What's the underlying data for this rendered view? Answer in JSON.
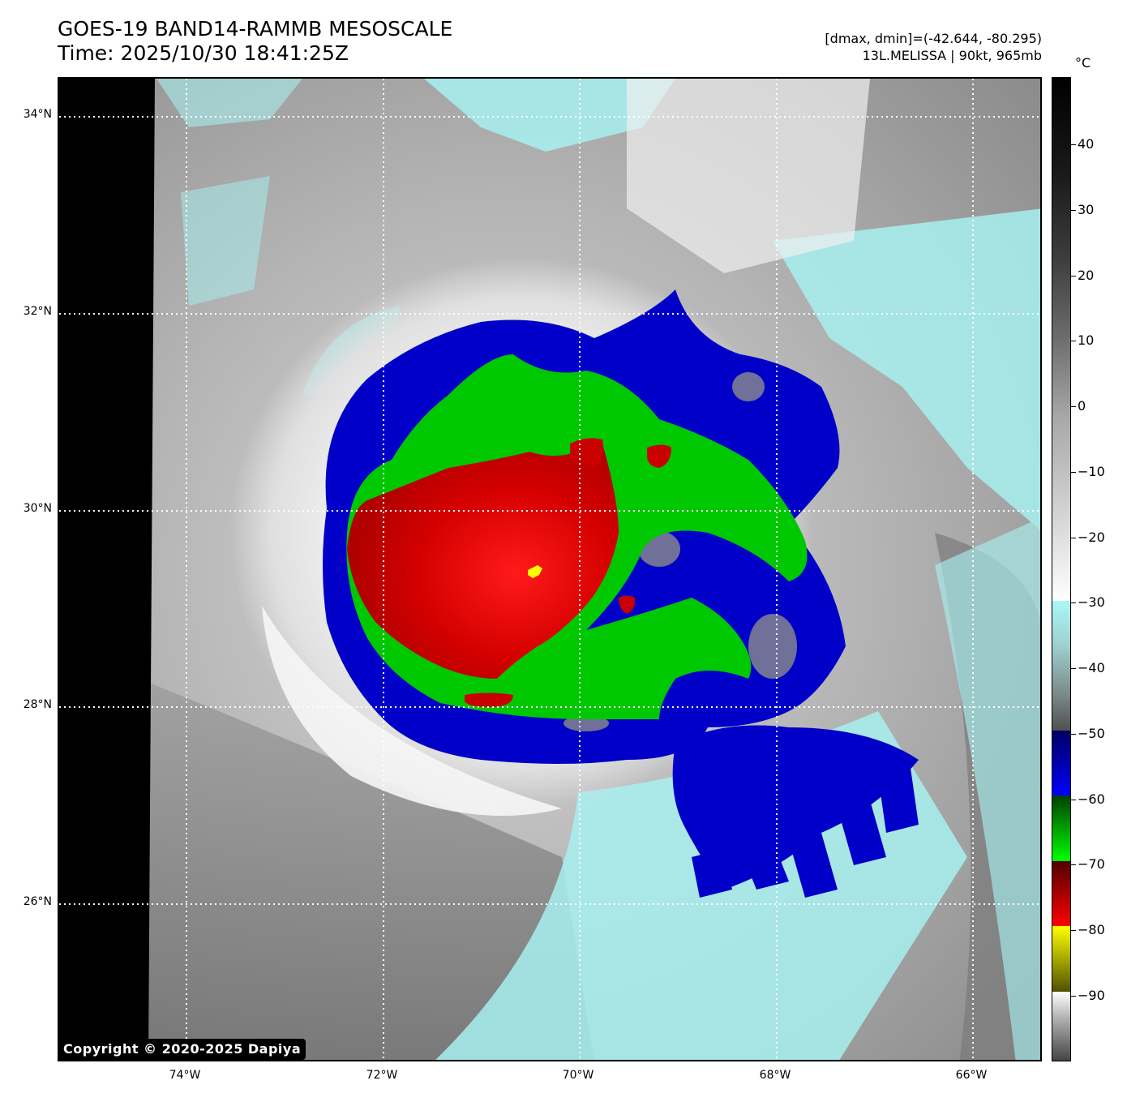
{
  "header": {
    "title_line1": "GOES-19 BAND14-RAMMB MESOSCALE",
    "title_line2": "Time: 2025/10/30 18:41:25Z",
    "meta_line1": "[dmax, dmin]=(-42.644, -80.295)",
    "meta_line2": "13L.MELISSA | 90kt, 965mb"
  },
  "map": {
    "lat_labels": [
      "34°N",
      "32°N",
      "30°N",
      "28°N",
      "26°N"
    ],
    "lon_labels": [
      "74°W",
      "72°W",
      "70°W",
      "68°W",
      "66°W"
    ]
  },
  "colorbar": {
    "unit": "°C",
    "labels": [
      "40",
      "30",
      "20",
      "10",
      "0",
      "−10",
      "−20",
      "−30",
      "−40",
      "−50",
      "−60",
      "−70",
      "−80",
      "−90"
    ]
  },
  "copyright": "Copyright © 2020-2025 Dapiya",
  "colors": {
    "red_core": "#c80000",
    "green": "#00c800",
    "blue": "#0000c8",
    "cyan": "#a8f0f0",
    "yellow": "#ffff00"
  }
}
